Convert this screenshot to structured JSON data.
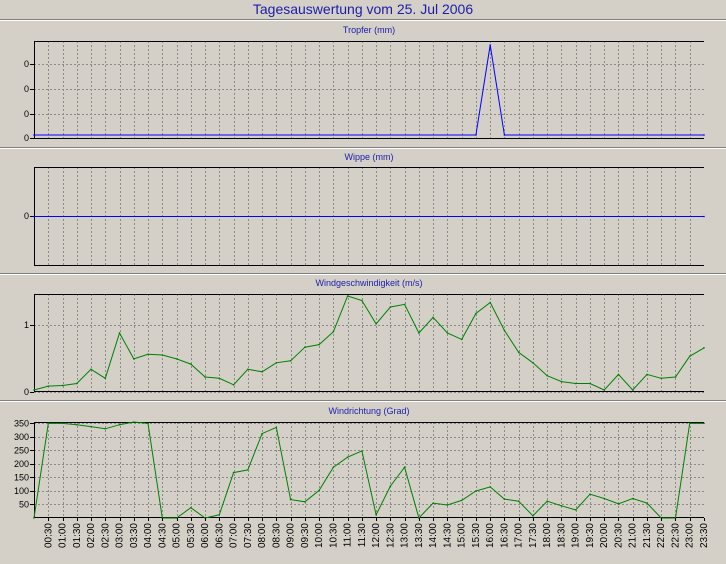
{
  "title": "Tagesauswertung vom 25. Jul 2006",
  "chart_data": [
    {
      "type": "line",
      "title": "Tropfer (mm)",
      "ylim": [
        0,
        1
      ],
      "ytick_labels": [
        "0",
        "0",
        "0",
        "0"
      ],
      "color": "#0000ff",
      "grid": true,
      "x": [
        0,
        15.5,
        16,
        16.5,
        23.5
      ],
      "values": [
        0,
        0,
        1,
        0,
        0
      ]
    },
    {
      "type": "line",
      "title": "Wippe (mm)",
      "ylim": [
        0,
        1
      ],
      "ytick_labels": [
        "0"
      ],
      "color": "#0000ff",
      "grid": true,
      "x": [
        0,
        23.5
      ],
      "values": [
        0.5,
        0.5
      ]
    },
    {
      "type": "line",
      "title": "Windgeschwindigkeit (m/s)",
      "ylim": [
        0,
        1.45
      ],
      "ytick_labels": [
        "0",
        "1"
      ],
      "color": "#008000",
      "grid": true,
      "x": [
        0,
        0.5,
        1,
        1.5,
        2,
        2.5,
        3,
        3.5,
        4,
        4.5,
        5,
        5.5,
        6,
        6.5,
        7,
        7.5,
        8,
        8.5,
        9,
        9.5,
        10,
        10.5,
        11,
        11.5,
        12,
        12.5,
        13,
        13.5,
        14,
        14.5,
        15,
        15.5,
        16,
        16.5,
        17,
        17.5,
        18,
        18.5,
        19,
        19.5,
        20,
        20.5,
        21,
        21.5,
        22,
        22.5,
        23,
        23.5
      ],
      "values": [
        0,
        0.06,
        0.07,
        0.1,
        0.32,
        0.18,
        0.88,
        0.48,
        0.55,
        0.54,
        0.48,
        0.4,
        0.2,
        0.18,
        0.08,
        0.32,
        0.28,
        0.42,
        0.45,
        0.66,
        0.7,
        0.9,
        1.45,
        1.38,
        1.02,
        1.28,
        1.32,
        0.88,
        1.12,
        0.88,
        0.78,
        1.18,
        1.35,
        0.92,
        0.58,
        0.42,
        0.22,
        0.13,
        0.1,
        0.1,
        0,
        0.24,
        0,
        0.24,
        0.18,
        0.2,
        0.52,
        0.65
      ]
    },
    {
      "type": "line",
      "title": "Windrichtung (Grad)",
      "ylim": [
        0,
        355
      ],
      "yticks": [
        50,
        100,
        150,
        200,
        250,
        300,
        350
      ],
      "ytick_labels": [
        "50",
        "100",
        "150",
        "200",
        "250",
        "300",
        "350"
      ],
      "color": "#008000",
      "grid": true,
      "x": [
        0,
        0.5,
        1,
        1.5,
        2,
        2.5,
        3,
        3.5,
        4,
        4.5,
        5,
        5.5,
        6,
        6.5,
        7,
        7.5,
        8,
        8.5,
        9,
        9.5,
        10,
        10.5,
        11,
        11.5,
        12,
        12.5,
        13,
        13.5,
        14,
        14.5,
        15,
        15.5,
        16,
        16.5,
        17,
        17.5,
        18,
        18.5,
        19,
        19.5,
        20,
        20.5,
        21,
        21.5,
        22,
        22.5,
        23,
        23.5
      ],
      "values": [
        0,
        350,
        350,
        345,
        338,
        330,
        345,
        355,
        350,
        0,
        0,
        38,
        0,
        12,
        168,
        178,
        312,
        335,
        68,
        60,
        102,
        188,
        225,
        248,
        12,
        118,
        188,
        0,
        55,
        48,
        65,
        100,
        115,
        70,
        62,
        8,
        62,
        45,
        30,
        88,
        72,
        52,
        72,
        55,
        0,
        0,
        350,
        350
      ],
      "xtick_labels": [
        "00:30",
        "01:00",
        "01:30",
        "02:00",
        "02:30",
        "03:00",
        "03:30",
        "04:00",
        "04:30",
        "05:00",
        "05:30",
        "06:00",
        "06:30",
        "07:00",
        "07:30",
        "08:00",
        "08:30",
        "09:00",
        "09:30",
        "10:00",
        "10:30",
        "11:00",
        "11:30",
        "12:00",
        "12:30",
        "13:00",
        "13:30",
        "14:00",
        "14:30",
        "15:00",
        "15:30",
        "16:00",
        "16:30",
        "17:00",
        "17:30",
        "18:00",
        "18:30",
        "19:00",
        "19:30",
        "20:00",
        "20:30",
        "21:00",
        "21:30",
        "22:00",
        "22:30",
        "23:00",
        "23:30"
      ]
    }
  ]
}
